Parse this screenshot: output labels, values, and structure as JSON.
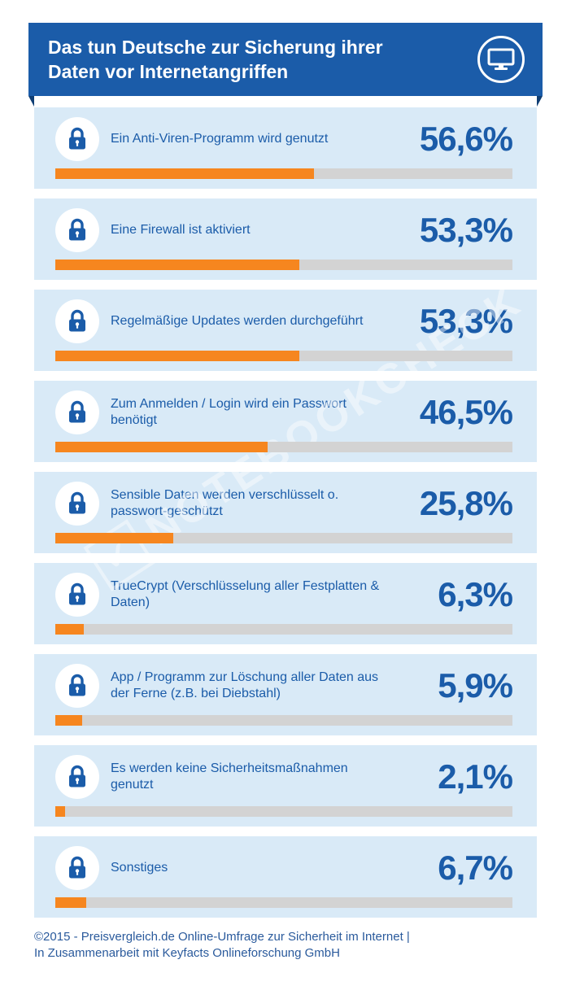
{
  "header": {
    "title_line1": "Das tun Deutsche zur Sicherung ihrer",
    "title_line2": "Daten vor Internetangriffen"
  },
  "items": [
    {
      "label": "Ein Anti-Viren-Programm wird genutzt",
      "value": "56,6%",
      "percent": 56.6
    },
    {
      "label": "Eine Firewall ist aktiviert",
      "value": "53,3%",
      "percent": 53.3
    },
    {
      "label": "Regelmäßige Updates werden durchgeführt",
      "value": "53,3%",
      "percent": 53.3
    },
    {
      "label": "Zum Anmelden / Login wird ein Passwort benötigt",
      "value": "46,5%",
      "percent": 46.5
    },
    {
      "label": "Sensible Daten werden verschlüsselt o. passwort-geschützt",
      "value": "25,8%",
      "percent": 25.8
    },
    {
      "label": "TrueCrypt (Verschlüsselung aller Festplatten & Daten)",
      "value": "6,3%",
      "percent": 6.3
    },
    {
      "label": "App / Programm zur Löschung aller Daten aus der Ferne (z.B. bei Diebstahl)",
      "value": "5,9%",
      "percent": 5.9
    },
    {
      "label": "Es werden keine Sicherheitsmaßnahmen genutzt",
      "value": "2,1%",
      "percent": 2.1
    },
    {
      "label": "Sonstiges",
      "value": "6,7%",
      "percent": 6.7
    }
  ],
  "footer": {
    "line1": "©2015 - Preisvergleich.de Online-Umfrage zur Sicherheit im Internet |",
    "line2": "In Zusammenarbeit mit Keyfacts Onlineforschung GmbH"
  },
  "watermark": {
    "text": "NOTEBOOKCHECK",
    "check_glyph": "✓"
  },
  "colors": {
    "banner_blue": "#1b5ca9",
    "fold_dark_blue": "#0f3e74",
    "row_light_blue": "#d9eaf7",
    "bar_orange": "#f6861f",
    "bar_track_gray": "#d3d3d3",
    "text_blue": "#1b5ca9"
  },
  "chart_data": {
    "type": "bar",
    "orientation": "horizontal",
    "title": "Das tun Deutsche zur Sicherung ihrer Daten vor Internetangriffen",
    "categories": [
      "Ein Anti-Viren-Programm wird genutzt",
      "Eine Firewall ist aktiviert",
      "Regelmäßige Updates werden durchgeführt",
      "Zum Anmelden / Login wird ein Passwort benötigt",
      "Sensible Daten werden verschlüsselt o. passwort-geschützt",
      "TrueCrypt (Verschlüsselung aller Festplatten & Daten)",
      "App / Programm zur Löschung aller Daten aus der Ferne (z.B. bei Diebstahl)",
      "Es werden keine Sicherheitsmaßnahmen genutzt",
      "Sonstiges"
    ],
    "values": [
      56.6,
      53.3,
      53.3,
      46.5,
      25.8,
      6.3,
      5.9,
      2.1,
      6.7
    ],
    "unit": "%",
    "xlim": [
      0,
      100
    ],
    "grid": false,
    "legend": false,
    "source": "©2015 - Preisvergleich.de Online-Umfrage zur Sicherheit im Internet | In Zusammenarbeit mit Keyfacts Onlineforschung GmbH"
  }
}
